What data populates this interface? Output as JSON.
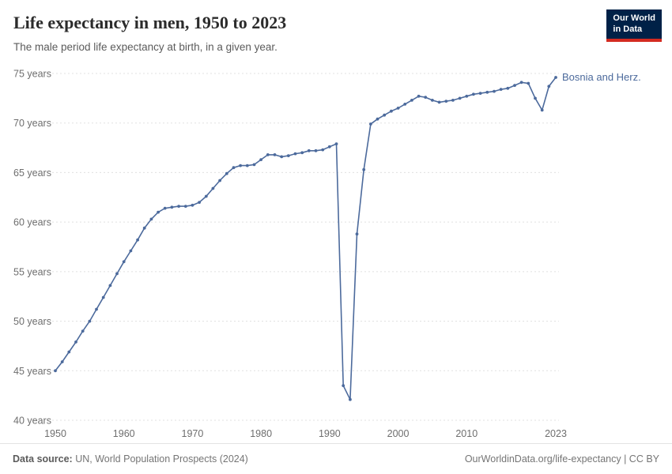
{
  "header": {
    "title": "Life expectancy in men, 1950 to 2023",
    "subtitle": "The male period life expectancy at birth, in a given year.",
    "logo": {
      "line1": "Our World",
      "line2": "in Data",
      "bg": "#002147",
      "accent": "#d42b21"
    }
  },
  "chart_data": {
    "type": "line",
    "title": "Life expectancy in men, 1950 to 2023",
    "xlabel": "",
    "ylabel": "",
    "xlim": [
      1950,
      2023
    ],
    "ylim": [
      40,
      75
    ],
    "x_ticks": [
      1950,
      1960,
      1970,
      1980,
      1990,
      2000,
      2010,
      2023
    ],
    "y_ticks": [
      40,
      45,
      50,
      55,
      60,
      65,
      70,
      75
    ],
    "y_tick_suffix": " years",
    "grid": "horizontal-dashed",
    "legend_position": "end-of-line-label",
    "series": [
      {
        "name": "Bosnia and Herz.",
        "color": "#4c6a9c",
        "x": [
          1950,
          1951,
          1952,
          1953,
          1954,
          1955,
          1956,
          1957,
          1958,
          1959,
          1960,
          1961,
          1962,
          1963,
          1964,
          1965,
          1966,
          1967,
          1968,
          1969,
          1970,
          1971,
          1972,
          1973,
          1974,
          1975,
          1976,
          1977,
          1978,
          1979,
          1980,
          1981,
          1982,
          1983,
          1984,
          1985,
          1986,
          1987,
          1988,
          1989,
          1990,
          1991,
          1992,
          1993,
          1994,
          1995,
          1996,
          1997,
          1998,
          1999,
          2000,
          2001,
          2002,
          2003,
          2004,
          2005,
          2006,
          2007,
          2008,
          2009,
          2010,
          2011,
          2012,
          2013,
          2014,
          2015,
          2016,
          2017,
          2018,
          2019,
          2020,
          2021,
          2022,
          2023
        ],
        "values": [
          45.0,
          45.9,
          46.9,
          47.9,
          49.0,
          50.0,
          51.2,
          52.4,
          53.6,
          54.8,
          56.0,
          57.1,
          58.2,
          59.4,
          60.3,
          61.0,
          61.4,
          61.5,
          61.6,
          61.6,
          61.7,
          62.0,
          62.6,
          63.4,
          64.2,
          64.9,
          65.5,
          65.7,
          65.7,
          65.8,
          66.3,
          66.8,
          66.8,
          66.6,
          66.7,
          66.9,
          67.0,
          67.2,
          67.2,
          67.3,
          67.6,
          67.9,
          43.5,
          42.1,
          58.8,
          65.3,
          69.9,
          70.4,
          70.8,
          71.2,
          71.5,
          71.9,
          72.3,
          72.7,
          72.6,
          72.3,
          72.1,
          72.2,
          72.3,
          72.5,
          72.7,
          72.9,
          73.0,
          73.1,
          73.2,
          73.4,
          73.5,
          73.8,
          74.1,
          74.0,
          72.5,
          71.3,
          73.7,
          74.6
        ]
      }
    ]
  },
  "footer": {
    "source_label": "Data source:",
    "source_text": "UN, World Population Prospects (2024)",
    "credit": "OurWorldinData.org/life-expectancy | CC BY"
  }
}
